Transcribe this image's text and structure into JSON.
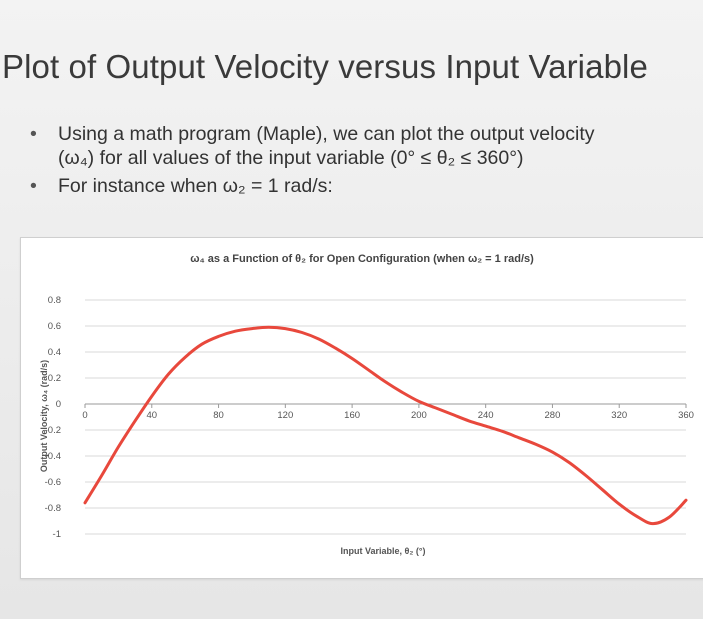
{
  "slide": {
    "title": "Plot of Output Velocity versus Input Variable",
    "bullets": [
      "Using a math program (Maple), we can plot the output velocity",
      "(ω₄) for all values of the input variable (0° ≤ θ₂ ≤ 360°)",
      "For instance when ω₂ = 1 rad/s:"
    ]
  },
  "chart_data": {
    "type": "line",
    "title": "ω₄ as a Function of θ₂ for Open Configuration (when ω₂ = 1 rad/s)",
    "xlabel": "Input Variable, θ₂ (°)",
    "ylabel": "Output Velocity, ω₄ (rad/s)",
    "xlim": [
      0,
      360
    ],
    "ylim": [
      -1,
      0.8
    ],
    "xticks": [
      "0",
      "40",
      "80",
      "120",
      "160",
      "200",
      "240",
      "280",
      "320",
      "360"
    ],
    "yticks": [
      "0.8",
      "0.6",
      "0.4",
      "0.2",
      "0",
      "-0.2",
      "-0.4",
      "-0.6",
      "-0.8",
      "-1"
    ],
    "grid": "horizontal",
    "line_color": "#e8483c",
    "series": [
      {
        "x": [
          0,
          10,
          20,
          30,
          40,
          50,
          60,
          70,
          80,
          90,
          100,
          110,
          120,
          130,
          140,
          150,
          160,
          170,
          180,
          190,
          200,
          210,
          220,
          230,
          240,
          250,
          260,
          270,
          280,
          290,
          300,
          310,
          320,
          330,
          340,
          350,
          360
        ],
        "values": [
          -0.76,
          -0.55,
          -0.33,
          -0.13,
          0.06,
          0.23,
          0.36,
          0.46,
          0.52,
          0.56,
          0.58,
          0.59,
          0.58,
          0.55,
          0.5,
          0.43,
          0.35,
          0.26,
          0.17,
          0.09,
          0.02,
          -0.03,
          -0.08,
          -0.13,
          -0.17,
          -0.21,
          -0.26,
          -0.31,
          -0.37,
          -0.45,
          -0.55,
          -0.66,
          -0.77,
          -0.86,
          -0.92,
          -0.87,
          -0.74
        ]
      }
    ]
  }
}
